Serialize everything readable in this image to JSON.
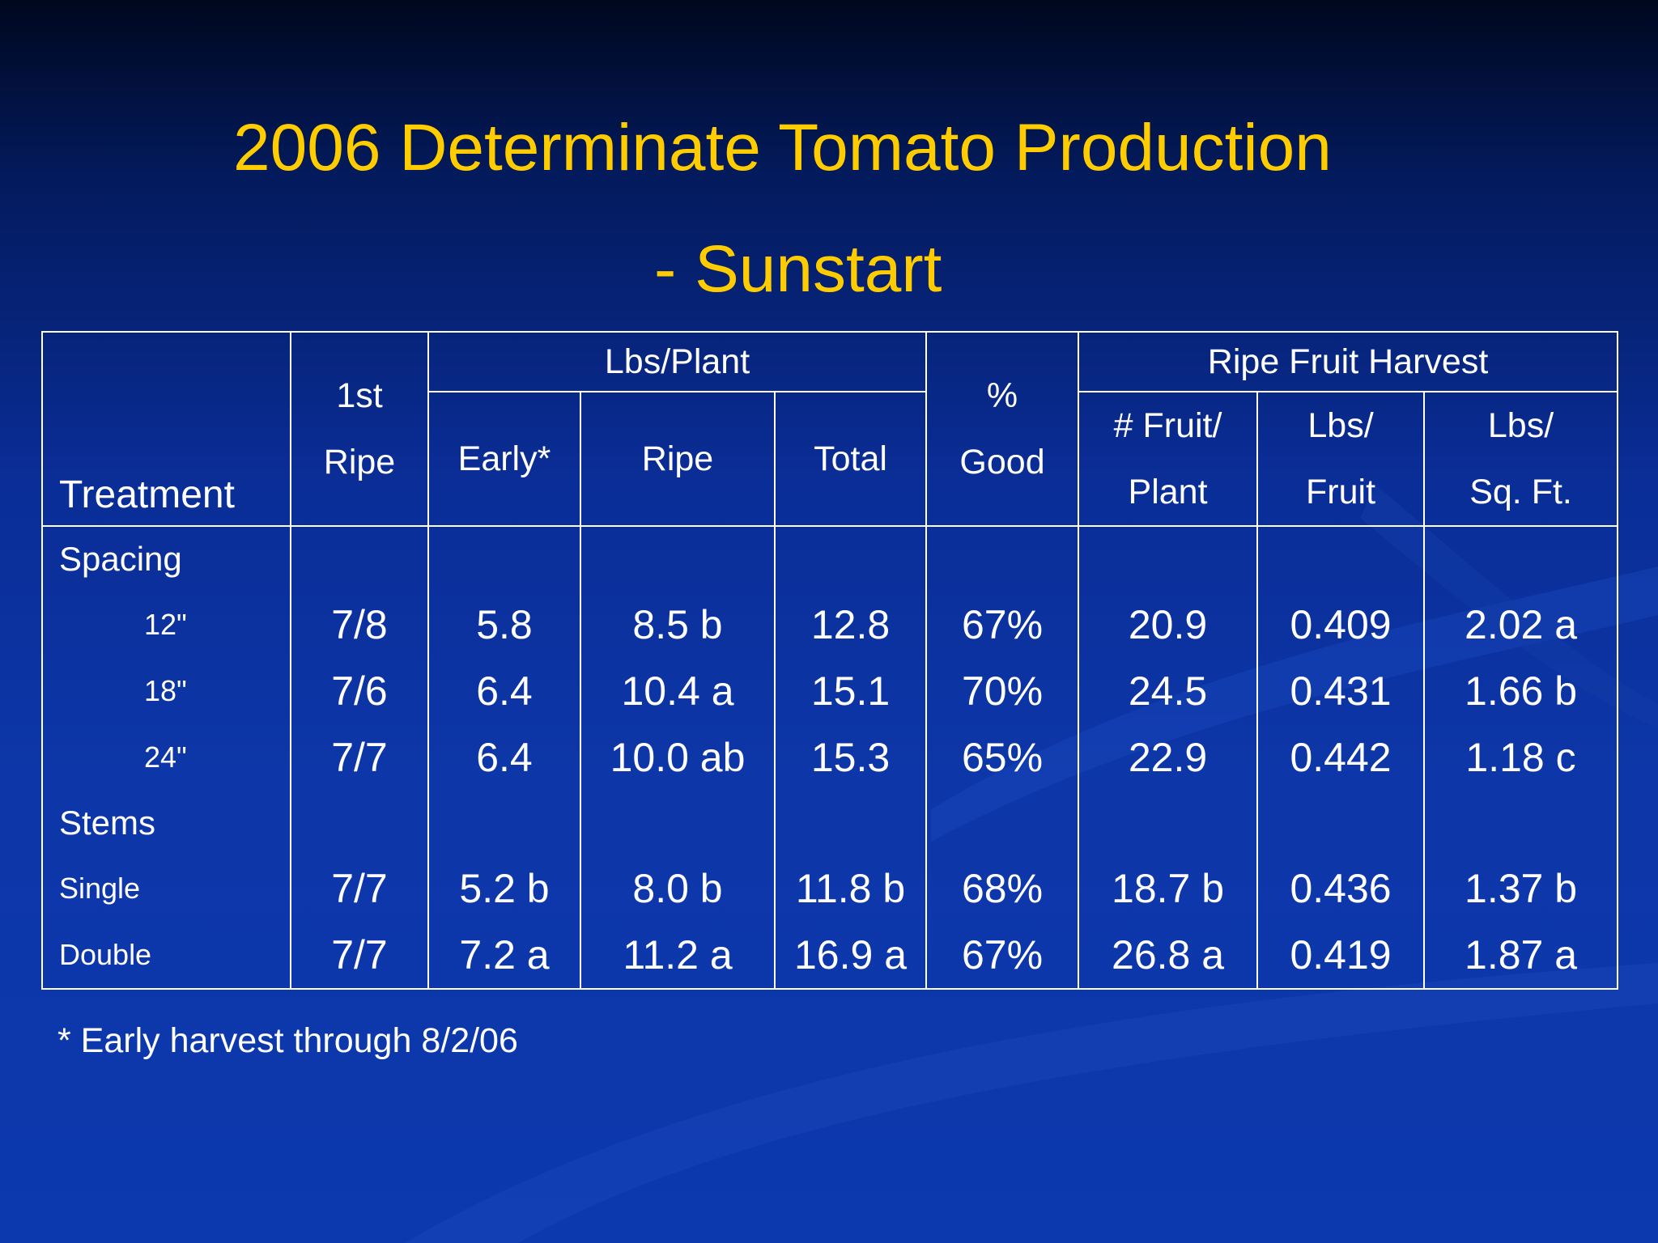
{
  "slide": {
    "title_line1": "2006 Determinate Tomato Production",
    "title_line2": "- Sunstart",
    "footnote": "* Early harvest through 8/2/06"
  },
  "colors": {
    "title": "#ffcc00",
    "background": "#0d36a8",
    "text": "#ffffff"
  },
  "table": {
    "group_headers": {
      "lbs_plant": "Lbs/Plant",
      "ripe_fruit_harvest": "Ripe Fruit Harvest"
    },
    "headers": {
      "treatment": "Treatment",
      "first_ripe": [
        "1st",
        "Ripe"
      ],
      "early": "Early*",
      "ripe": "Ripe",
      "total": "Total",
      "good": [
        "%",
        "Good"
      ],
      "fruit_plant": [
        "# Fruit/",
        "Plant"
      ],
      "lbs_fruit": [
        "Lbs/",
        "Fruit"
      ],
      "lbs_sqft": [
        "Lbs/",
        "Sq. Ft."
      ]
    },
    "sections": [
      {
        "label": "Spacing",
        "rows": [
          {
            "label": "12\"",
            "values": [
              "7/8",
              "5.8",
              "8.5 b",
              "12.8",
              "67%",
              "20.9",
              "0.409",
              "2.02 a"
            ]
          },
          {
            "label": "18\"",
            "values": [
              "7/6",
              "6.4",
              "10.4 a",
              "15.1",
              "70%",
              "24.5",
              "0.431",
              "1.66 b"
            ]
          },
          {
            "label": "24\"",
            "values": [
              "7/7",
              "6.4",
              "10.0 ab",
              "15.3",
              "65%",
              "22.9",
              "0.442",
              "1.18 c"
            ]
          }
        ]
      },
      {
        "label": "Stems",
        "rows": [
          {
            "label": "Single",
            "values": [
              "7/7",
              "5.2 b",
              "8.0 b",
              "11.8 b",
              "68%",
              "18.7 b",
              "0.436",
              "1.37 b"
            ]
          },
          {
            "label": "Double",
            "values": [
              "7/7",
              "7.2 a",
              "11.2 a",
              "16.9 a",
              "67%",
              "26.8 a",
              "0.419",
              "1.87 a"
            ]
          }
        ]
      }
    ]
  }
}
